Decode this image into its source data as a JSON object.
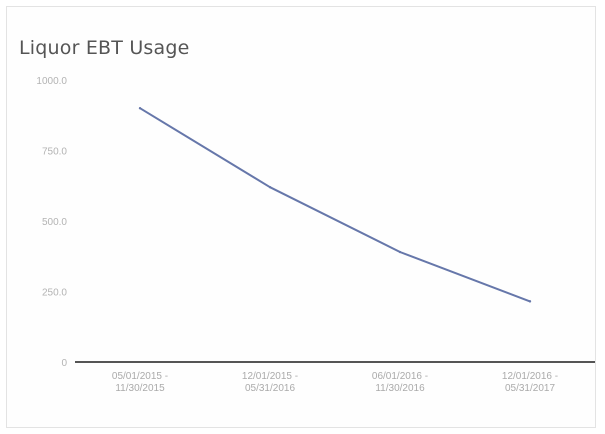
{
  "chart_data": {
    "type": "line",
    "title": "Liquor EBT Usage",
    "xlabel": "",
    "ylabel": "",
    "ylim": [
      0,
      1000
    ],
    "yticks": [
      "0",
      "250.0",
      "500.0",
      "750.0",
      "1000.0"
    ],
    "ytick_values": [
      0,
      250,
      500,
      750,
      1000
    ],
    "categories": [
      [
        "05/01/2015 -",
        "11/30/2015"
      ],
      [
        "12/01/2015 -",
        "05/31/2016"
      ],
      [
        "06/01/2016 -",
        "11/30/2016"
      ],
      [
        "12/01/2016 -",
        "05/31/2017"
      ]
    ],
    "series": [
      {
        "values": [
          900,
          620,
          390,
          215
        ]
      }
    ],
    "grid": false,
    "colors": {
      "line": "#6677aa",
      "axis": "#555555"
    }
  }
}
